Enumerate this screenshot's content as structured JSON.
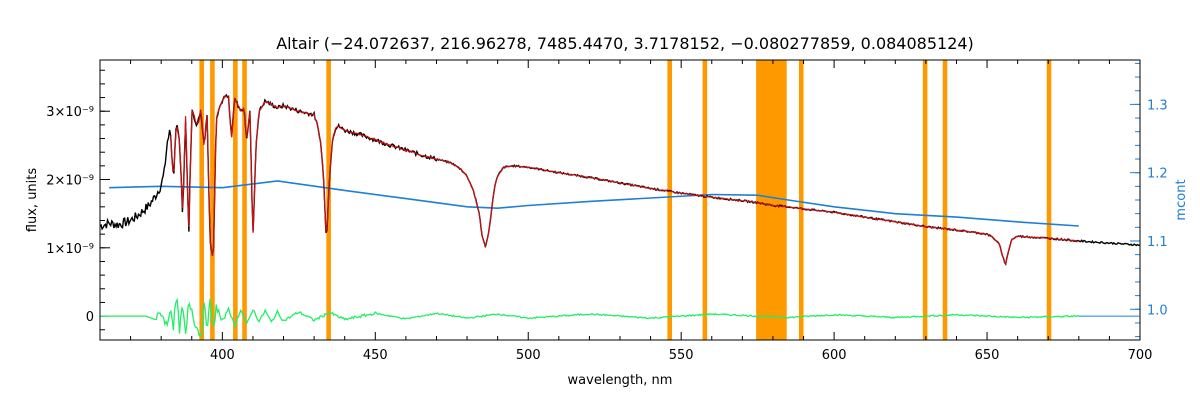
{
  "chart_data": {
    "type": "line",
    "title": "Altair    (−24.072637, 216.96278, 7485.4470, 3.7178152, −0.080277859, 0.084085124)",
    "xlabel": "wavelength, nm",
    "ylabel": "flux, units",
    "y2label": "mcont",
    "xlim": [
      360,
      700
    ],
    "ylim": [
      -3.5e-10,
      3.75e-09
    ],
    "y2lim": [
      0.955,
      1.365
    ],
    "x_ticks": [
      {
        "value": 400,
        "label": "400"
      },
      {
        "value": 450,
        "label": "450"
      },
      {
        "value": 500,
        "label": "500"
      },
      {
        "value": 550,
        "label": "550"
      },
      {
        "value": 600,
        "label": "600"
      },
      {
        "value": 650,
        "label": "650"
      },
      {
        "value": 700,
        "label": "700"
      }
    ],
    "y_ticks": [
      {
        "value": 0,
        "label": "0"
      },
      {
        "value": 1e-09,
        "label": "1×10⁻⁹"
      },
      {
        "value": 2e-09,
        "label": "2×10⁻⁹"
      },
      {
        "value": 3e-09,
        "label": "3×10⁻⁹"
      }
    ],
    "y2_ticks": [
      {
        "value": 1.0,
        "label": "1.0"
      },
      {
        "value": 1.1,
        "label": "1.1"
      },
      {
        "value": 1.2,
        "label": "1.2"
      },
      {
        "value": 1.3,
        "label": "1.3"
      }
    ],
    "masked_regions": [
      [
        392.5,
        394.0
      ],
      [
        396.0,
        397.5
      ],
      [
        403.5,
        405.0
      ],
      [
        406.5,
        408.0
      ],
      [
        434.0,
        435.5
      ],
      [
        545.5,
        547.0
      ],
      [
        557.0,
        558.5
      ],
      [
        574.5,
        584.5
      ],
      [
        588.5,
        590.0
      ],
      [
        629.0,
        630.5
      ],
      [
        635.5,
        637.0
      ],
      [
        669.5,
        671.0
      ]
    ],
    "colors": {
      "observed": "#000000",
      "model": "#cc1111",
      "continuum": "#1f7fd6",
      "residual": "#22ee66",
      "mask": "#ff9900",
      "gap": "#ffee00"
    },
    "continuum_series": {
      "name": "mcont",
      "x": [
        363,
        380,
        400,
        418,
        440,
        460,
        480,
        490,
        500,
        520,
        540,
        560,
        575,
        585,
        600,
        620,
        640,
        660,
        680
      ],
      "y2": [
        1.178,
        1.18,
        1.178,
        1.188,
        1.174,
        1.162,
        1.15,
        1.148,
        1.152,
        1.158,
        1.163,
        1.168,
        1.167,
        1.16,
        1.15,
        1.14,
        1.135,
        1.128,
        1.122
      ]
    },
    "spectrum_series": {
      "name": "observed flux",
      "x": [
        360,
        363,
        366,
        369,
        372,
        374,
        376,
        378,
        380,
        381,
        382,
        383,
        384,
        385,
        386,
        387,
        388,
        389,
        390,
        391,
        392,
        393,
        394,
        395,
        396,
        397,
        398,
        399,
        400,
        401,
        402,
        403,
        404,
        405,
        406,
        407,
        408,
        409,
        410,
        411,
        412,
        414,
        416,
        418,
        420,
        425,
        430,
        431,
        432,
        433,
        434,
        435,
        436,
        437,
        438,
        440,
        445,
        450,
        455,
        460,
        465,
        470,
        475,
        478,
        480,
        482,
        484,
        485,
        486,
        487,
        488,
        489,
        490,
        492,
        495,
        500,
        510,
        520,
        530,
        540,
        550,
        560,
        570,
        575,
        580,
        585,
        590,
        600,
        610,
        620,
        630,
        640,
        645,
        650,
        652,
        654,
        655,
        656,
        657,
        658,
        660,
        670,
        680,
        690,
        700
      ],
      "y": [
        1.32e-09,
        1.36e-09,
        1.34e-09,
        1.38e-09,
        1.46e-09,
        1.54e-09,
        1.62e-09,
        1.75e-09,
        1.92e-09,
        2.1e-09,
        2.55e-09,
        2.72e-09,
        2e-09,
        2.8e-09,
        2.6e-09,
        1.5e-09,
        2.9e-09,
        1.2e-09,
        3e-09,
        2.9e-09,
        2.8e-09,
        3.05e-09,
        2.5e-09,
        2.95e-09,
        1.1e-09,
        8e-10,
        2.9e-09,
        3.05e-09,
        3.15e-09,
        3.22e-09,
        3.2e-09,
        2.6e-09,
        3.18e-09,
        3.1e-09,
        3e-09,
        3.05e-09,
        2.6e-09,
        3e-09,
        1.15e-09,
        2.5e-09,
        3e-09,
        3.15e-09,
        3.1e-09,
        3.05e-09,
        3.08e-09,
        3e-09,
        2.95e-09,
        2.8e-09,
        2.6e-09,
        2.1e-09,
        1.1e-09,
        2e-09,
        2.6e-09,
        2.75e-09,
        2.78e-09,
        2.72e-09,
        2.66e-09,
        2.58e-09,
        2.5e-09,
        2.43e-09,
        2.36e-09,
        2.3e-09,
        2.24e-09,
        2.15e-09,
        2.05e-09,
        1.85e-09,
        1.5e-09,
        1.15e-09,
        1.02e-09,
        1.2e-09,
        1.55e-09,
        1.9e-09,
        2.05e-09,
        2.18e-09,
        2.2e-09,
        2.18e-09,
        2.1e-09,
        2.03e-09,
        1.95e-09,
        1.87e-09,
        1.8e-09,
        1.74e-09,
        1.69e-09,
        1.66e-09,
        1.62e-09,
        1.6e-09,
        1.57e-09,
        1.52e-09,
        1.45e-09,
        1.38e-09,
        1.31e-09,
        1.26e-09,
        1.23e-09,
        1.2e-09,
        1.15e-09,
        1.05e-09,
        9e-10,
        7.5e-10,
        9.5e-10,
        1.12e-09,
        1.17e-09,
        1.14e-09,
        1.1e-09,
        1.07e-09,
        1.04e-09
      ]
    },
    "model_x_range": [
      383,
      680
    ],
    "residual_series": {
      "name": "residual",
      "x": [
        360,
        375,
        378,
        380,
        382,
        383,
        384,
        385,
        386,
        387,
        388,
        389,
        390,
        391,
        392,
        393,
        394,
        395,
        396,
        397,
        398,
        400,
        402,
        404,
        406,
        408,
        410,
        412,
        414,
        416,
        418,
        420,
        425,
        430,
        435,
        440,
        450,
        460,
        470,
        480,
        490,
        500,
        520,
        540,
        560,
        575,
        585,
        600,
        620,
        640,
        660,
        680
      ],
      "y": [
        0,
        0,
        -5e-11,
        5e-11,
        -1.5e-10,
        1.5e-10,
        -1.5e-10,
        3e-10,
        -2e-10,
        1.5e-10,
        -3e-10,
        2e-10,
        1e-10,
        -1e-10,
        -2e-10,
        -3.2e-10,
        1.5e-10,
        -1.5e-10,
        2e-10,
        -2.5e-10,
        1.5e-10,
        -1e-10,
        1.2e-10,
        -1.5e-10,
        1e-10,
        -1.2e-10,
        1e-10,
        -8e-11,
        8e-11,
        -9e-11,
        6e-11,
        -7e-11,
        6e-11,
        -6e-11,
        5e-11,
        -5e-11,
        4e-11,
        -4e-11,
        4e-11,
        -3e-11,
        3e-11,
        -3e-11,
        3e-11,
        -3e-11,
        3e-11,
        0,
        -2e-11,
        2e-11,
        -2e-11,
        2e-11,
        -2e-11,
        0
      ]
    }
  }
}
